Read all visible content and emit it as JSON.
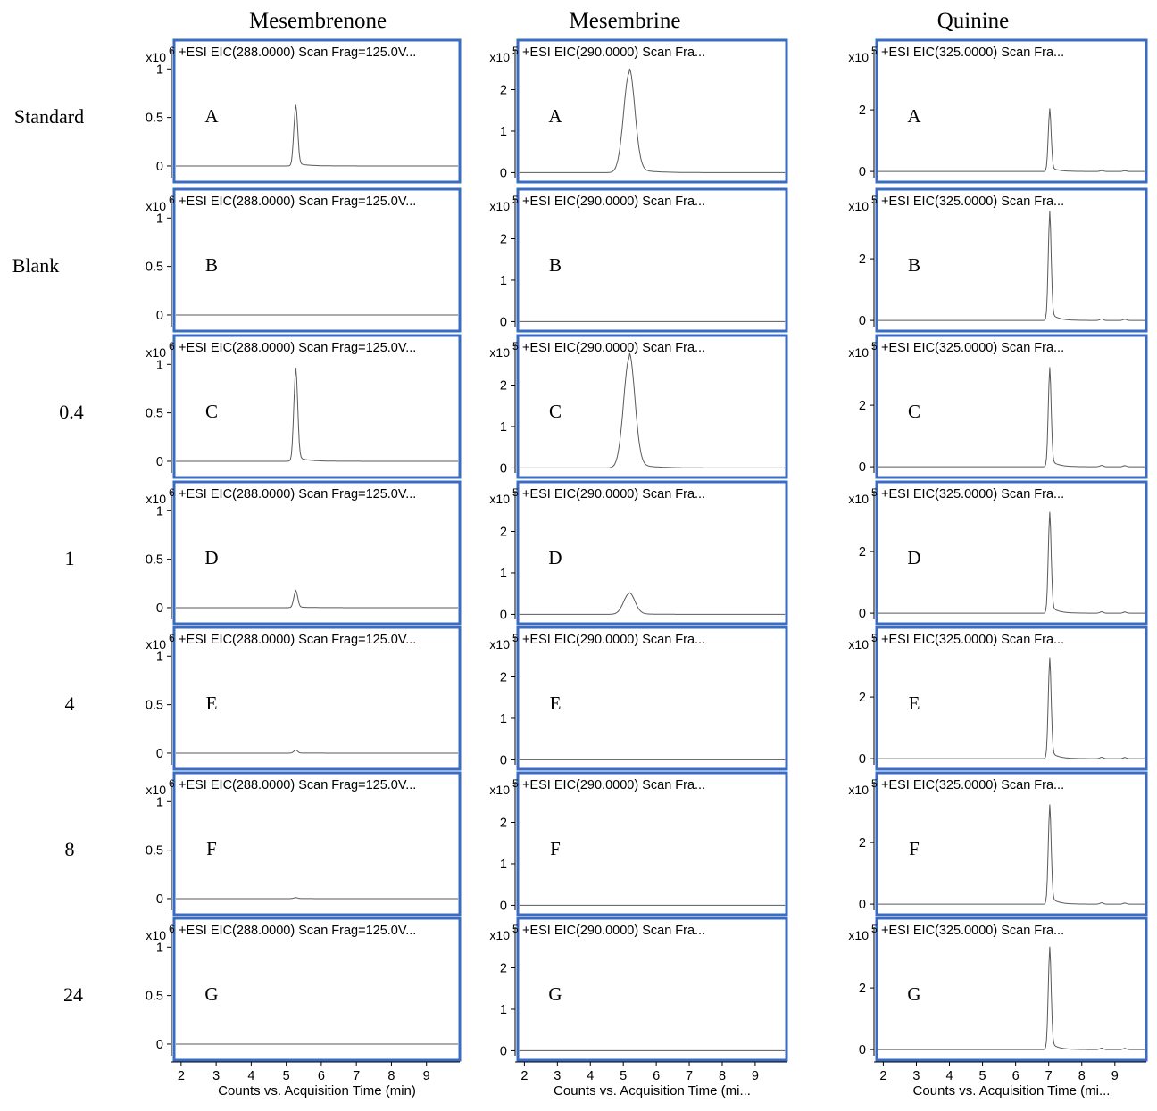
{
  "chart_data": {
    "type": "line",
    "columns": [
      {
        "title": "Mesembrenone",
        "trace_title": "+ESI EIC(288.0000) Scan Frag=125.0V...",
        "scale_label": "x10",
        "scale_exponent": "6",
        "yticks": [
          "0",
          "0.5",
          "1"
        ],
        "ylim": [
          -0.12,
          1.15
        ],
        "peak_time": 5.27
      },
      {
        "title": "Mesembrine",
        "trace_title": "+ESI EIC(290.0000) Scan Fra...",
        "scale_label": "x10",
        "scale_exponent": "5",
        "yticks": [
          "0",
          "1",
          "2"
        ],
        "ylim": [
          -0.12,
          2.85
        ],
        "peak_time": 5.18
      },
      {
        "title": "Quinine",
        "trace_title": "+ESI EIC(325.0000) Scan Fra...",
        "scale_label": "x10",
        "scale_exponent": "5",
        "yticks": [
          "0",
          "2"
        ],
        "ylim": [
          -0.2,
          3.8
        ],
        "peak_time": 7.03
      }
    ],
    "rows": [
      {
        "label": "Standard",
        "letter": "A",
        "peaks": [
          0.6,
          2.4,
          1.9
        ]
      },
      {
        "label": "Blank",
        "letter": "B",
        "peaks": [
          0,
          0,
          3.3
        ]
      },
      {
        "label": "0.4",
        "letter": "C",
        "peaks": [
          0.92,
          2.65,
          3.0
        ]
      },
      {
        "label": "1",
        "letter": "D",
        "peaks": [
          0.17,
          0.5,
          3.05
        ]
      },
      {
        "label": "4",
        "letter": "E",
        "peaks": [
          0.03,
          0,
          3.05
        ]
      },
      {
        "label": "8",
        "letter": "F",
        "peaks": [
          0.01,
          0,
          3.0
        ]
      },
      {
        "label": "24",
        "letter": "G",
        "peaks": [
          0,
          0,
          3.1
        ]
      }
    ],
    "x": {
      "ticks": [
        "2",
        "3",
        "4",
        "5",
        "6",
        "7",
        "8",
        "9"
      ],
      "xlim": [
        1.8,
        9.95
      ],
      "labels": [
        "Counts vs. Acquisition Time (min)",
        "Counts vs. Acquisition Time (mi...",
        "Counts vs. Acquisition Time (mi..."
      ]
    },
    "grid": false
  },
  "colors": {
    "frame": "#3a6cc4",
    "trace": "#5a5a5a",
    "axis": "#000000"
  }
}
